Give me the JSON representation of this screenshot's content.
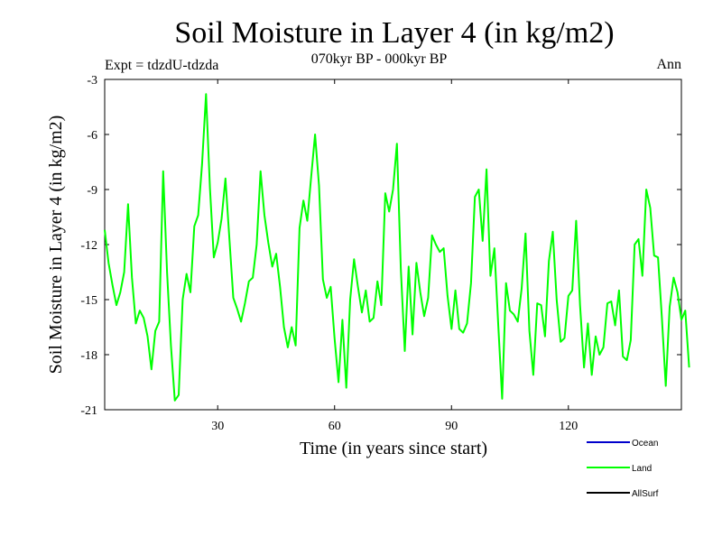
{
  "chart_data": {
    "type": "line",
    "title": "Soil Moisture in Layer 4 (in kg/m2)",
    "subtitle": "070kyr BP - 000kyr BP",
    "experiment_label": "Expt = tdzdU-tdzda",
    "season_label": "Ann",
    "xlabel": "Time (in years since start)",
    "ylabel": "Soil Moisture in Layer 4 (in kg/m2)",
    "xlim": [
      1,
      149
    ],
    "ylim": [
      -21,
      -3
    ],
    "x_ticks": [
      30,
      60,
      90,
      120
    ],
    "y_ticks": [
      -3,
      -6,
      -9,
      -12,
      -15,
      -18,
      -21
    ],
    "legend": [
      {
        "name": "Ocean",
        "color": "#0000cc"
      },
      {
        "name": "Land",
        "color": "#00ff00"
      },
      {
        "name": "AllSurf",
        "color": "#000000"
      }
    ],
    "series": [
      {
        "name": "Land",
        "color": "#00ff00",
        "x_start": 1,
        "x_step": 1,
        "values": [
          -11.2,
          -13.0,
          -14.2,
          -15.3,
          -14.6,
          -13.5,
          -9.8,
          -13.8,
          -16.3,
          -15.6,
          -16.0,
          -17.0,
          -18.8,
          -16.7,
          -16.2,
          -8.0,
          -13.5,
          -17.5,
          -20.5,
          -20.2,
          -15.0,
          -13.6,
          -14.6,
          -11.0,
          -10.4,
          -7.6,
          -3.8,
          -8.9,
          -12.7,
          -11.9,
          -10.6,
          -8.4,
          -11.7,
          -14.9,
          -15.5,
          -16.2,
          -15.2,
          -14.0,
          -13.8,
          -12.0,
          -8.0,
          -10.4,
          -11.9,
          -13.2,
          -12.5,
          -14.3,
          -16.5,
          -17.6,
          -16.5,
          -17.5,
          -11.1,
          -9.6,
          -10.7,
          -8.3,
          -6.0,
          -8.8,
          -13.9,
          -14.9,
          -14.3,
          -17.1,
          -19.5,
          -16.1,
          -19.8,
          -15.0,
          -12.8,
          -14.3,
          -15.7,
          -14.5,
          -16.2,
          -16.0,
          -14.0,
          -15.3,
          -9.2,
          -10.2,
          -9.0,
          -6.5,
          -13.3,
          -17.8,
          -13.2,
          -16.9,
          -13.0,
          -14.6,
          -15.9,
          -14.9,
          -11.5,
          -12.0,
          -12.4,
          -12.2,
          -14.8,
          -16.6,
          -14.5,
          -16.6,
          -16.8,
          -16.3,
          -14.1,
          -9.4,
          -9.0,
          -11.8,
          -7.9,
          -13.7,
          -12.2,
          -16.4,
          -20.4,
          -14.1,
          -15.6,
          -15.8,
          -16.2,
          -14.4,
          -11.4,
          -16.7,
          -19.1,
          -15.2,
          -15.3,
          -17.0,
          -12.9,
          -11.3,
          -15.0,
          -17.3,
          -17.1,
          -14.8,
          -14.5,
          -10.7,
          -15.3,
          -18.7,
          -16.3,
          -19.1,
          -17.0,
          -18.0,
          -17.6,
          -15.2,
          -15.1,
          -16.4,
          -14.5,
          -18.1,
          -18.3,
          -17.2,
          -12.0,
          -11.7,
          -13.7,
          -9.0,
          -10.0,
          -12.6,
          -12.7,
          -16.0,
          -19.7,
          -15.4,
          -13.8,
          -14.6,
          -16.1,
          -15.6,
          -18.7
        ]
      }
    ]
  }
}
